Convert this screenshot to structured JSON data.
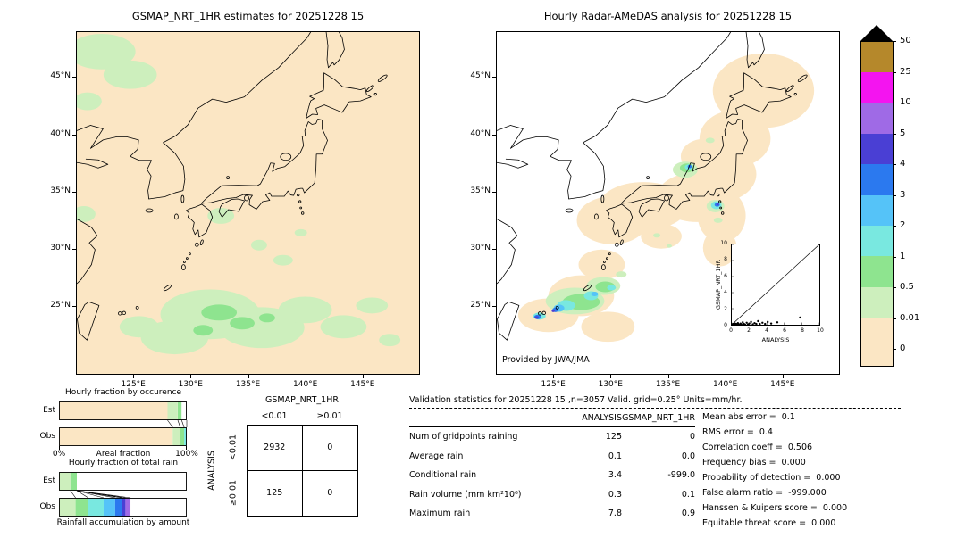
{
  "colorbar": {
    "labels": [
      "50",
      "25",
      "10",
      "5",
      "4",
      "3",
      "2",
      "1",
      "0.5",
      "0.01",
      "0"
    ],
    "cell_colors": [
      "#b5882b",
      "#f414f0",
      "#9f6ae6",
      "#4a3fd4",
      "#2b79ef",
      "#55c3f8",
      "#79e8e0",
      "#8ee48f",
      "#cdefbd",
      "#fbe6c4"
    ],
    "extend_color": "#fbe6c4",
    "arrow_color": "#000000"
  },
  "chart_data": [
    {
      "type": "heatmap",
      "title": "GSMAP_NRT_1HR estimates for 20251228 15",
      "xticks": [
        "125°E",
        "130°E",
        "135°E",
        "140°E",
        "145°E"
      ],
      "yticks": [
        "45°N",
        "40°N",
        "35°N",
        "30°N",
        "25°N"
      ],
      "legend_boundaries": [
        0,
        0.01,
        0.5,
        1,
        2,
        3,
        4,
        5,
        10,
        25,
        50
      ],
      "units": "mm/hr"
    },
    {
      "type": "heatmap",
      "title": "Hourly Radar-AMeDAS analysis for 20251228 15",
      "xticks": [
        "125°E",
        "130°E",
        "135°E",
        "140°E",
        "145°E"
      ],
      "yticks": [
        "45°N",
        "40°N",
        "35°N",
        "30°N",
        "25°N"
      ],
      "legend_boundaries": [
        0,
        0.01,
        0.5,
        1,
        2,
        3,
        4,
        5,
        10,
        25,
        50
      ],
      "units": "mm/hr",
      "credit": "Provided by JWA/JMA"
    },
    {
      "type": "scatter",
      "xlabel": "ANALYSIS",
      "ylabel": "GSMAP_NRT_1HR",
      "ticks": [
        "0",
        "2",
        "4",
        "6",
        "8",
        "10"
      ],
      "xlim": [
        0,
        10
      ],
      "ylim": [
        0,
        10
      ],
      "points": [
        [
          0.05,
          0.0
        ],
        [
          0.1,
          0.05
        ],
        [
          0.15,
          0.1
        ],
        [
          0.2,
          0.0
        ],
        [
          0.3,
          0.05
        ],
        [
          0.35,
          0.15
        ],
        [
          0.4,
          0.0
        ],
        [
          0.5,
          0.1
        ],
        [
          0.6,
          0.02
        ],
        [
          0.7,
          0.2
        ],
        [
          0.8,
          0.05
        ],
        [
          0.9,
          0.0
        ],
        [
          1.0,
          0.15
        ],
        [
          1.1,
          0.05
        ],
        [
          1.25,
          0.3
        ],
        [
          1.4,
          0.1
        ],
        [
          1.55,
          0.0
        ],
        [
          1.7,
          0.25
        ],
        [
          1.85,
          0.05
        ],
        [
          2.0,
          0.15
        ],
        [
          2.2,
          0.35
        ],
        [
          2.4,
          0.05
        ],
        [
          2.6,
          0.2
        ],
        [
          2.8,
          0.1
        ],
        [
          3.0,
          0.45
        ],
        [
          3.2,
          0.1
        ],
        [
          3.5,
          0.25
        ],
        [
          3.8,
          0.1
        ],
        [
          4.1,
          0.35
        ],
        [
          4.5,
          0.15
        ],
        [
          5.2,
          0.3
        ],
        [
          7.8,
          0.9
        ]
      ]
    },
    {
      "type": "bar",
      "stacked": true,
      "orientation": "horizontal",
      "title": "Hourly fraction by occurence",
      "rows": [
        "Est",
        "Obs"
      ],
      "xlabel": "Areal fraction",
      "x_range_labels": [
        "0%",
        "100%"
      ],
      "est_segments": [
        {
          "color": "#fbe6c4",
          "pct": 85
        },
        {
          "color": "#cdefbd",
          "pct": 8
        },
        {
          "color": "#8ee48f",
          "pct": 3
        },
        {
          "color": "#ffffff",
          "pct": 4
        }
      ],
      "obs_segments": [
        {
          "color": "#fbe6c4",
          "pct": 89
        },
        {
          "color": "#cdefbd",
          "pct": 6
        },
        {
          "color": "#8ee48f",
          "pct": 3
        },
        {
          "color": "#79e8e0",
          "pct": 2
        }
      ],
      "links": [
        [
          85,
          89
        ],
        [
          93,
          95
        ],
        [
          96,
          98
        ],
        [
          100,
          100
        ]
      ]
    },
    {
      "type": "bar",
      "stacked": true,
      "orientation": "horizontal",
      "title": "Hourly fraction of total rain",
      "rows": [
        "Est",
        "Obs"
      ],
      "caption": "Rainfall accumulation by amount",
      "est_segments": [
        {
          "color": "#cdefbd",
          "pct": 9
        },
        {
          "color": "#8ee48f",
          "pct": 5
        },
        {
          "color": "#ffffff",
          "pct": 86
        }
      ],
      "obs_segments": [
        {
          "color": "#cdefbd",
          "pct": 13
        },
        {
          "color": "#8ee48f",
          "pct": 10
        },
        {
          "color": "#79e8e0",
          "pct": 12
        },
        {
          "color": "#55c3f8",
          "pct": 9
        },
        {
          "color": "#2b79ef",
          "pct": 5
        },
        {
          "color": "#4a3fd4",
          "pct": 3
        },
        {
          "color": "#9f6ae6",
          "pct": 4
        },
        {
          "color": "#ffffff",
          "pct": 44
        }
      ],
      "links": [
        [
          9,
          13
        ],
        [
          14,
          23
        ],
        [
          14,
          35
        ],
        [
          14,
          44
        ],
        [
          14,
          49
        ],
        [
          14,
          52
        ],
        [
          14,
          56
        ]
      ]
    },
    {
      "type": "table",
      "col_group": "GSMAP_NRT_1HR",
      "row_group": "ANALYSIS",
      "col_labels": [
        "<0.01",
        "≥0.01"
      ],
      "row_labels": [
        "<0.01",
        "≥0.01"
      ],
      "values": [
        [
          "2932",
          "0"
        ],
        [
          "125",
          "0"
        ]
      ]
    },
    {
      "type": "table",
      "title": "Validation statistics for 20251228 15 ,n=3057 Valid. grid=0.25° Units=mm/hr.",
      "col_a": "ANALYSIS",
      "col_g": "GSMAP_NRT_1HR",
      "rows": [
        [
          "Num of gridpoints raining",
          "125",
          "0"
        ],
        [
          "Average rain",
          "0.1",
          "0.0"
        ],
        [
          "Conditional rain",
          "3.4",
          "-999.0"
        ],
        [
          "Rain volume (mm km²10⁶)",
          "0.3",
          "0.1"
        ],
        [
          "Maximum rain",
          "7.8",
          "0.9"
        ]
      ],
      "scores": [
        [
          "Mean abs error",
          "0.1"
        ],
        [
          "RMS error",
          "0.4"
        ],
        [
          "Correlation coeff",
          "0.506"
        ],
        [
          "Frequency bias",
          "0.000"
        ],
        [
          "Probability of detection",
          "0.000"
        ],
        [
          "False alarm ratio",
          "-999.000"
        ],
        [
          "Hanssen & Kuipers score",
          "0.000"
        ],
        [
          "Equitable threat score",
          "0.000"
        ]
      ]
    }
  ]
}
